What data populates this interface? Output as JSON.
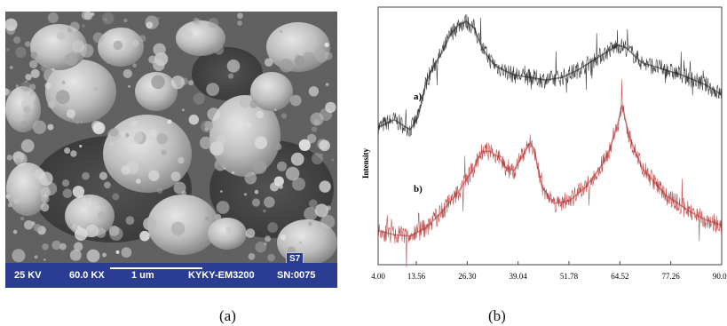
{
  "sem": {
    "accelerating_voltage": "25 KV",
    "magnification": "60.0 KX",
    "scale": "1 um",
    "instrument": "KYKY-EM3200",
    "serial": "SN:0075",
    "tag": "S7"
  },
  "chart_data": {
    "type": "line",
    "ylabel": "Intensity",
    "xlabel": "",
    "xticks": [
      "4.00",
      "13.56",
      "26.30",
      "39.04",
      "51.78",
      "64.52",
      "77.26",
      "90.00"
    ],
    "xlim": [
      4.0,
      90.0
    ],
    "grid": false,
    "series": [
      {
        "name": "a)",
        "color": "#1a1a1a",
        "x": [
          4,
          8,
          12,
          14,
          16,
          18,
          20,
          22,
          24,
          26,
          28,
          30,
          32,
          34,
          38,
          42,
          46,
          50,
          54,
          58,
          62,
          64,
          66,
          68,
          70,
          74,
          80,
          86,
          90
        ],
        "y": [
          0.12,
          0.18,
          0.1,
          0.2,
          0.48,
          0.62,
          0.72,
          0.86,
          0.94,
          0.97,
          0.92,
          0.76,
          0.66,
          0.6,
          0.54,
          0.52,
          0.5,
          0.52,
          0.58,
          0.66,
          0.74,
          0.78,
          0.76,
          0.7,
          0.64,
          0.6,
          0.54,
          0.46,
          0.38
        ]
      },
      {
        "name": "b)",
        "color": "#b03030",
        "x": [
          4,
          8,
          12,
          16,
          20,
          24,
          28,
          30,
          32,
          34,
          36,
          38,
          40,
          42,
          43,
          45,
          48,
          52,
          56,
          60,
          62,
          64,
          65,
          67,
          70,
          76,
          82,
          86,
          90
        ],
        "y": [
          0.08,
          0.05,
          0.04,
          0.1,
          0.22,
          0.36,
          0.54,
          0.66,
          0.66,
          0.62,
          0.54,
          0.52,
          0.62,
          0.72,
          0.68,
          0.4,
          0.28,
          0.3,
          0.4,
          0.56,
          0.68,
          0.86,
          1.0,
          0.76,
          0.54,
          0.34,
          0.22,
          0.16,
          0.12
        ]
      }
    ]
  },
  "captions": {
    "left": "(a)",
    "right": "(b)"
  }
}
